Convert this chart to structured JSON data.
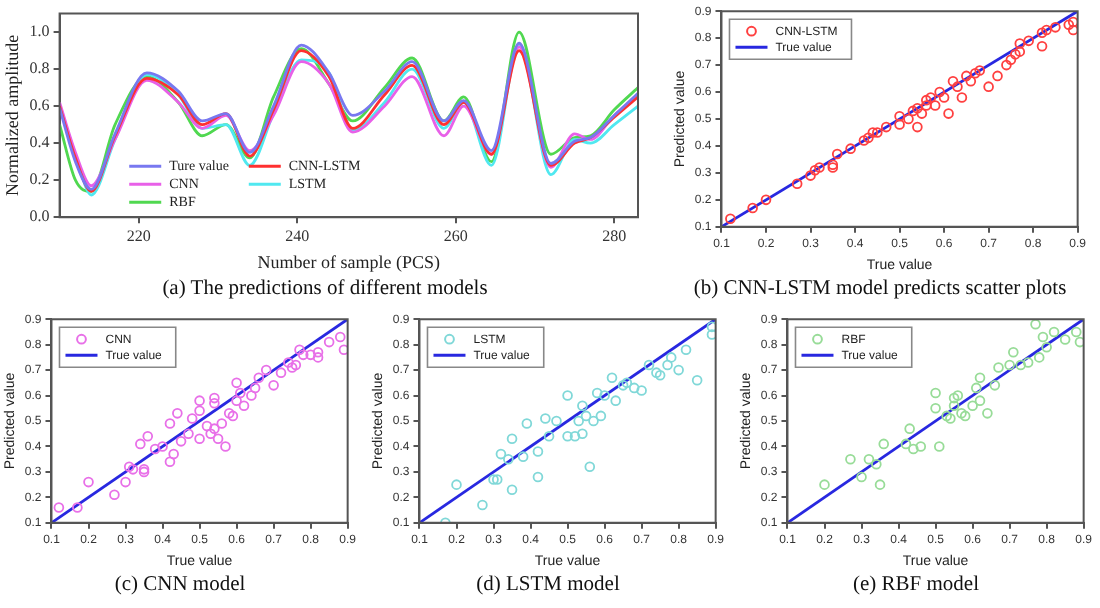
{
  "chart_data": [
    {
      "type": "line",
      "title": "(a) The predictions of different models",
      "xlabel": "Number of sample (PCS)",
      "ylabel": "Normalized amplitude",
      "legend": "bottom left",
      "xlim": [
        210,
        283
      ],
      "xticks": [
        220,
        240,
        260,
        280
      ],
      "ylim": [
        0,
        1.1
      ],
      "yticks": [
        {
          "value": 0,
          "label": "0.0"
        },
        0.2,
        0.4,
        0.6,
        0.8,
        {
          "value": 1,
          "label": "1.0"
        }
      ],
      "x": [
        210,
        212,
        214,
        217,
        221,
        225,
        228,
        231,
        234,
        237,
        240.5,
        244,
        247,
        251,
        254.5,
        258.5,
        261,
        264.5,
        268,
        272,
        275,
        277,
        280,
        283
      ],
      "series": [
        {
          "name": "Ture value",
          "color": "#7878f0",
          "values": [
            0.59,
            0.3,
            0.15,
            0.45,
            0.78,
            0.68,
            0.52,
            0.56,
            0.35,
            0.6,
            0.93,
            0.78,
            0.55,
            0.68,
            0.84,
            0.52,
            0.63,
            0.36,
            0.94,
            0.29,
            0.41,
            0.43,
            0.55,
            0.67
          ]
        },
        {
          "name": "CNN-LSTM",
          "color": "#ff3030",
          "values": [
            0.6,
            0.32,
            0.14,
            0.44,
            0.75,
            0.66,
            0.5,
            0.56,
            0.33,
            0.58,
            0.9,
            0.76,
            0.48,
            0.66,
            0.82,
            0.5,
            0.62,
            0.34,
            0.9,
            0.28,
            0.4,
            0.43,
            0.54,
            0.65
          ]
        },
        {
          "name": "CNN",
          "color": "#e860e8",
          "values": [
            0.62,
            0.35,
            0.17,
            0.42,
            0.74,
            0.62,
            0.48,
            0.55,
            0.36,
            0.55,
            0.84,
            0.72,
            0.46,
            0.6,
            0.76,
            0.44,
            0.6,
            0.34,
            0.92,
            0.27,
            0.45,
            0.42,
            0.55,
            0.66
          ]
        },
        {
          "name": "LSTM",
          "color": "#50e8f0",
          "values": [
            0.6,
            0.34,
            0.12,
            0.42,
            0.77,
            0.66,
            0.48,
            0.5,
            0.28,
            0.56,
            0.85,
            0.78,
            0.47,
            0.62,
            0.8,
            0.48,
            0.62,
            0.28,
            0.93,
            0.23,
            0.42,
            0.4,
            0.5,
            0.6
          ]
        },
        {
          "name": "RBF",
          "color": "#50d850",
          "values": [
            0.5,
            0.2,
            0.14,
            0.5,
            0.76,
            0.62,
            0.44,
            0.5,
            0.32,
            0.65,
            0.91,
            0.72,
            0.52,
            0.7,
            0.86,
            0.52,
            0.65,
            0.3,
            1.0,
            0.34,
            0.43,
            0.44,
            0.58,
            0.7
          ]
        }
      ]
    },
    {
      "type": "scatter",
      "title": "(b) CNN-LSTM model predicts scatter plots",
      "xlabel": "True value",
      "ylabel": "Predicted value",
      "legend": "top left",
      "marker": "circle",
      "xlim": [
        0.1,
        0.9
      ],
      "xticks": [
        0.1,
        0.2,
        0.3,
        0.4,
        0.5,
        0.6,
        0.7,
        0.8,
        0.9
      ],
      "ylim": [
        0.1,
        0.9
      ],
      "yticks": [
        0.1,
        0.2,
        0.3,
        0.4,
        0.5,
        0.6,
        0.7,
        0.8,
        0.9
      ],
      "series": [
        {
          "name": "CNN-LSTM",
          "color": "#ff4040",
          "x": [
            0.12,
            0.17,
            0.2,
            0.27,
            0.3,
            0.31,
            0.32,
            0.35,
            0.35,
            0.36,
            0.39,
            0.42,
            0.43,
            0.44,
            0.45,
            0.47,
            0.5,
            0.5,
            0.52,
            0.53,
            0.54,
            0.54,
            0.55,
            0.56,
            0.56,
            0.57,
            0.58,
            0.59,
            0.6,
            0.61,
            0.62,
            0.63,
            0.64,
            0.65,
            0.66,
            0.67,
            0.68,
            0.7,
            0.72,
            0.74,
            0.75,
            0.76,
            0.77,
            0.77,
            0.79,
            0.82,
            0.82,
            0.83,
            0.85,
            0.88,
            0.89,
            0.89
          ],
          "values": [
            0.13,
            0.17,
            0.2,
            0.26,
            0.29,
            0.31,
            0.32,
            0.32,
            0.33,
            0.37,
            0.39,
            0.42,
            0.43,
            0.45,
            0.45,
            0.47,
            0.51,
            0.48,
            0.5,
            0.53,
            0.54,
            0.47,
            0.52,
            0.55,
            0.57,
            0.58,
            0.55,
            0.6,
            0.58,
            0.52,
            0.64,
            0.62,
            0.58,
            0.66,
            0.64,
            0.67,
            0.68,
            0.62,
            0.66,
            0.7,
            0.72,
            0.74,
            0.75,
            0.78,
            0.79,
            0.77,
            0.82,
            0.83,
            0.84,
            0.85,
            0.83,
            0.86
          ]
        },
        {
          "name": "True value",
          "type": "line",
          "marker": "none",
          "color": "#2828e0",
          "x": [
            0.1,
            0.9
          ],
          "values": [
            0.1,
            0.9
          ]
        }
      ]
    },
    {
      "type": "scatter",
      "title": "(c) CNN model",
      "xlabel": "True value",
      "ylabel": "Predicted value",
      "legend": "top left",
      "marker": "circle",
      "xlim": [
        0.1,
        0.9
      ],
      "xticks": [
        0.1,
        0.2,
        0.3,
        0.4,
        0.5,
        0.6,
        0.7,
        0.8,
        0.9
      ],
      "ylim": [
        0.1,
        0.9
      ],
      "yticks": [
        0.1,
        0.2,
        0.3,
        0.4,
        0.5,
        0.6,
        0.7,
        0.8,
        0.9
      ],
      "series": [
        {
          "name": "CNN",
          "color": "#e870e8",
          "x": [
            0.12,
            0.17,
            0.2,
            0.27,
            0.3,
            0.31,
            0.32,
            0.34,
            0.35,
            0.35,
            0.36,
            0.38,
            0.4,
            0.42,
            0.42,
            0.43,
            0.44,
            0.45,
            0.47,
            0.48,
            0.5,
            0.5,
            0.5,
            0.52,
            0.53,
            0.54,
            0.54,
            0.54,
            0.55,
            0.56,
            0.57,
            0.58,
            0.59,
            0.6,
            0.6,
            0.61,
            0.62,
            0.64,
            0.65,
            0.66,
            0.68,
            0.7,
            0.72,
            0.74,
            0.75,
            0.76,
            0.77,
            0.78,
            0.8,
            0.82,
            0.82,
            0.85,
            0.88,
            0.89
          ],
          "values": [
            0.16,
            0.16,
            0.26,
            0.21,
            0.26,
            0.32,
            0.31,
            0.41,
            0.3,
            0.31,
            0.44,
            0.39,
            0.4,
            0.34,
            0.49,
            0.37,
            0.53,
            0.42,
            0.45,
            0.51,
            0.58,
            0.54,
            0.43,
            0.48,
            0.45,
            0.57,
            0.59,
            0.47,
            0.43,
            0.49,
            0.4,
            0.53,
            0.52,
            0.58,
            0.65,
            0.61,
            0.56,
            0.6,
            0.63,
            0.67,
            0.7,
            0.64,
            0.69,
            0.73,
            0.71,
            0.72,
            0.78,
            0.76,
            0.76,
            0.75,
            0.77,
            0.81,
            0.83,
            0.78
          ]
        },
        {
          "name": "True value",
          "type": "line",
          "marker": "none",
          "color": "#2828e0",
          "x": [
            0.1,
            0.9
          ],
          "values": [
            0.1,
            0.9
          ]
        }
      ]
    },
    {
      "type": "scatter",
      "title": "(d) LSTM model",
      "xlabel": "True value",
      "ylabel": "Predicted value",
      "legend": "top left",
      "marker": "circle",
      "xlim": [
        0.1,
        0.9
      ],
      "xticks": [
        0.1,
        0.2,
        0.3,
        0.4,
        0.5,
        0.6,
        0.7,
        0.8,
        0.9
      ],
      "ylim": [
        0.1,
        0.9
      ],
      "yticks": [
        0.1,
        0.2,
        0.3,
        0.4,
        0.5,
        0.6,
        0.7,
        0.8,
        0.9
      ],
      "series": [
        {
          "name": "LSTM",
          "color": "#80d8d8",
          "x": [
            0.17,
            0.2,
            0.27,
            0.3,
            0.31,
            0.32,
            0.34,
            0.35,
            0.35,
            0.38,
            0.39,
            0.42,
            0.42,
            0.44,
            0.45,
            0.47,
            0.5,
            0.5,
            0.52,
            0.53,
            0.54,
            0.54,
            0.55,
            0.56,
            0.57,
            0.58,
            0.59,
            0.6,
            0.62,
            0.63,
            0.65,
            0.66,
            0.68,
            0.7,
            0.72,
            0.74,
            0.75,
            0.77,
            0.78,
            0.8,
            0.82,
            0.85,
            0.89,
            0.89
          ],
          "values": [
            0.1,
            0.25,
            0.17,
            0.27,
            0.27,
            0.37,
            0.35,
            0.23,
            0.43,
            0.36,
            0.49,
            0.28,
            0.38,
            0.51,
            0.44,
            0.5,
            0.6,
            0.44,
            0.44,
            0.5,
            0.56,
            0.45,
            0.52,
            0.32,
            0.5,
            0.61,
            0.52,
            0.6,
            0.67,
            0.58,
            0.64,
            0.65,
            0.63,
            0.62,
            0.72,
            0.69,
            0.68,
            0.72,
            0.75,
            0.7,
            0.78,
            0.66,
            0.84,
            0.87
          ]
        },
        {
          "name": "True value",
          "type": "line",
          "marker": "none",
          "color": "#2828e0",
          "x": [
            0.1,
            0.9
          ],
          "values": [
            0.1,
            0.9
          ]
        }
      ]
    },
    {
      "type": "scatter",
      "title": "(e) RBF model",
      "xlabel": "True value",
      "ylabel": "Predicted value",
      "legend": "top left",
      "marker": "circle",
      "xlim": [
        0.1,
        0.9
      ],
      "xticks": [
        0.1,
        0.2,
        0.3,
        0.4,
        0.5,
        0.6,
        0.7,
        0.8,
        0.9
      ],
      "ylim": [
        0.1,
        0.9
      ],
      "yticks": [
        0.1,
        0.2,
        0.3,
        0.4,
        0.5,
        0.6,
        0.7,
        0.8,
        0.9
      ],
      "series": [
        {
          "name": "RBF",
          "color": "#98dc98",
          "x": [
            0.2,
            0.27,
            0.3,
            0.32,
            0.34,
            0.35,
            0.36,
            0.42,
            0.43,
            0.44,
            0.46,
            0.5,
            0.5,
            0.51,
            0.53,
            0.54,
            0.55,
            0.55,
            0.56,
            0.57,
            0.58,
            0.6,
            0.61,
            0.62,
            0.62,
            0.64,
            0.66,
            0.67,
            0.7,
            0.71,
            0.73,
            0.75,
            0.77,
            0.78,
            0.79,
            0.8,
            0.82,
            0.85,
            0.88,
            0.89
          ],
          "values": [
            0.25,
            0.35,
            0.28,
            0.35,
            0.33,
            0.25,
            0.41,
            0.41,
            0.47,
            0.39,
            0.4,
            0.61,
            0.55,
            0.4,
            0.52,
            0.51,
            0.56,
            0.59,
            0.6,
            0.53,
            0.52,
            0.56,
            0.63,
            0.58,
            0.67,
            0.53,
            0.64,
            0.71,
            0.72,
            0.77,
            0.72,
            0.73,
            0.88,
            0.75,
            0.83,
            0.79,
            0.85,
            0.82,
            0.85,
            0.81
          ]
        },
        {
          "name": "True value",
          "type": "line",
          "marker": "none",
          "color": "#2828e0",
          "x": [
            0.1,
            0.9
          ],
          "values": [
            0.1,
            0.9
          ]
        }
      ]
    }
  ]
}
